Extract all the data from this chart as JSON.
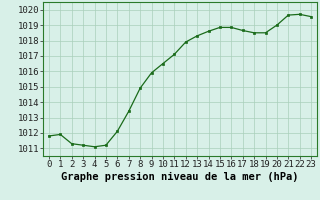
{
  "x": [
    0,
    1,
    2,
    3,
    4,
    5,
    6,
    7,
    8,
    9,
    10,
    11,
    12,
    13,
    14,
    15,
    16,
    17,
    18,
    19,
    20,
    21,
    22,
    23
  ],
  "y": [
    1011.8,
    1011.9,
    1011.3,
    1011.2,
    1011.1,
    1011.2,
    1012.1,
    1013.4,
    1014.9,
    1015.9,
    1016.5,
    1017.1,
    1017.9,
    1018.3,
    1018.6,
    1018.85,
    1018.85,
    1018.65,
    1018.5,
    1018.5,
    1019.0,
    1019.65,
    1019.7,
    1019.55
  ],
  "line_color": "#1a6b1a",
  "marker": "s",
  "marker_size": 2.0,
  "bg_color": "#d8f0e8",
  "grid_color": "#aacfbb",
  "ylim": [
    1010.5,
    1020.5
  ],
  "yticks": [
    1011,
    1012,
    1013,
    1014,
    1015,
    1016,
    1017,
    1018,
    1019,
    1020
  ],
  "xticks": [
    0,
    1,
    2,
    3,
    4,
    5,
    6,
    7,
    8,
    9,
    10,
    11,
    12,
    13,
    14,
    15,
    16,
    17,
    18,
    19,
    20,
    21,
    22,
    23
  ],
  "xlabel": "Graphe pression niveau de la mer (hPa)",
  "xlabel_fontsize": 7.5,
  "tick_fontsize": 6.5
}
